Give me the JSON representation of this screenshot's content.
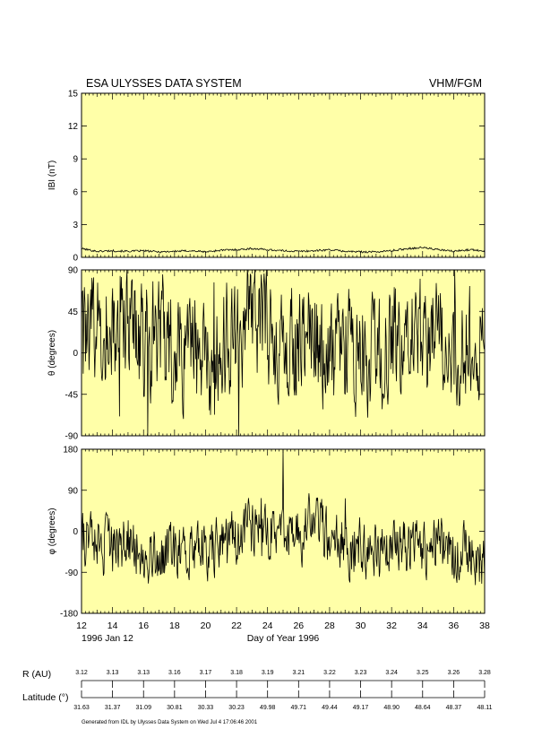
{
  "header": {
    "left_title": "ESA ULYSSES DATA SYSTEM",
    "right_title": "VHM/FGM"
  },
  "colors": {
    "panel_bg": "#ffffa8",
    "line": "#000000"
  },
  "chart_data": [
    {
      "type": "line",
      "ylabel": "IBI (nT)",
      "ylim": [
        0,
        15
      ],
      "yticks": [
        "0",
        "3",
        "6",
        "9",
        "12",
        "15"
      ],
      "xlim": [
        12,
        38
      ],
      "x": [
        12,
        13,
        14,
        15,
        16,
        17,
        18,
        19,
        20,
        21,
        22,
        23,
        24,
        25,
        26,
        27,
        28,
        29,
        30,
        31,
        32,
        33,
        34,
        35,
        36,
        37,
        38
      ],
      "y": [
        0.8,
        0.55,
        0.6,
        0.55,
        0.6,
        0.5,
        0.55,
        0.6,
        0.5,
        0.65,
        0.7,
        0.8,
        0.7,
        0.6,
        0.55,
        0.6,
        0.7,
        0.55,
        0.5,
        0.5,
        0.6,
        0.8,
        0.9,
        0.7,
        0.55,
        0.7,
        0.6
      ]
    },
    {
      "type": "line",
      "ylabel": "θ (degrees)",
      "ylim": [
        -90,
        90
      ],
      "yticks": [
        "-90",
        "-45",
        "0",
        "45",
        "90"
      ],
      "xlim": [
        12,
        38
      ],
      "x": [
        12,
        13,
        14,
        15,
        16,
        17,
        18,
        19,
        20,
        21,
        22,
        23,
        24,
        25,
        26,
        27,
        28,
        29,
        30,
        31,
        32,
        33,
        34,
        35,
        36,
        37,
        38
      ],
      "y": [
        10,
        35,
        20,
        30,
        5,
        25,
        -5,
        15,
        -20,
        10,
        15,
        40,
        30,
        10,
        5,
        15,
        -5,
        10,
        5,
        0,
        15,
        25,
        20,
        10,
        5,
        20,
        15
      ],
      "noise": 55
    },
    {
      "type": "line",
      "ylabel": "φ (degrees)",
      "ylim": [
        -180,
        180
      ],
      "yticks": [
        "-180",
        "-90",
        "0",
        "90",
        "180"
      ],
      "xlim": [
        12,
        38
      ],
      "x": [
        12,
        13,
        14,
        15,
        16,
        17,
        18,
        19,
        20,
        21,
        22,
        23,
        24,
        25,
        26,
        27,
        28,
        29,
        30,
        31,
        32,
        33,
        34,
        35,
        36,
        37,
        38
      ],
      "y": [
        -20,
        -30,
        -45,
        -20,
        -40,
        -60,
        -50,
        -30,
        -40,
        -30,
        -20,
        10,
        -10,
        0,
        -10,
        20,
        -10,
        -30,
        -40,
        -50,
        -40,
        -30,
        -45,
        -30,
        -40,
        -50,
        -60
      ],
      "noise": 55
    }
  ],
  "xaxis": {
    "label": "Day of Year 1996",
    "start_label": "1996 Jan 12",
    "ticks": [
      "12",
      "14",
      "16",
      "18",
      "20",
      "22",
      "24",
      "26",
      "28",
      "30",
      "32",
      "34",
      "36",
      "38"
    ]
  },
  "orbit": {
    "r_label": "R (AU)",
    "r_values": [
      "3.12",
      "3.13",
      "3.13",
      "3.16",
      "3.17",
      "3.18",
      "3.19",
      "3.21",
      "3.22",
      "3.23",
      "3.24",
      "3.25",
      "3.26",
      "3.28"
    ],
    "lat_label": "Latitude (°)",
    "lat_values": [
      "31.63",
      "31.37",
      "31.09",
      "30.81",
      "30.33",
      "30.23",
      "49.98",
      "49.71",
      "49.44",
      "49.17",
      "48.90",
      "48.64",
      "48.37",
      "48.11"
    ]
  },
  "footer": "Generated from IDL by Ulysses Data System on Wed Jul  4 17:06:46 2001"
}
